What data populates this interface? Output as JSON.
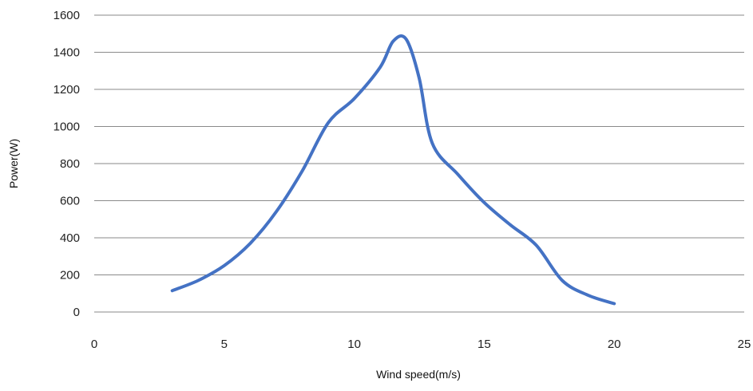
{
  "chart_data": {
    "type": "line",
    "xlabel": "Wind speed(m/s)",
    "ylabel": "Power(W)",
    "xlim": [
      0,
      25
    ],
    "ylim": [
      0,
      1600
    ],
    "x_ticks": [
      "0",
      "5",
      "10",
      "15",
      "20",
      "25"
    ],
    "y_ticks": [
      "0",
      "200",
      "400",
      "600",
      "800",
      "1000",
      "1200",
      "1400",
      "1600"
    ],
    "grid": true,
    "series": [
      {
        "color": "#4472C4",
        "x": [
          3,
          4,
          5,
          6,
          7,
          8,
          9,
          10,
          11,
          11.5,
          12,
          12.5,
          13,
          14,
          15,
          16,
          17,
          18,
          19,
          20
        ],
        "y": [
          115,
          170,
          250,
          370,
          540,
          760,
          1020,
          1150,
          1320,
          1460,
          1470,
          1260,
          910,
          740,
          590,
          470,
          360,
          170,
          90,
          45
        ]
      }
    ]
  }
}
